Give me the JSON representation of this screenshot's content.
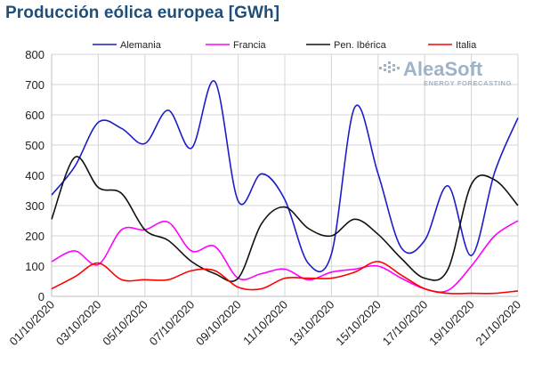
{
  "chart_data": {
    "type": "line",
    "title": "Producción eólica europea [GWh]",
    "ylim": [
      0,
      800
    ],
    "yticks": [
      0,
      100,
      200,
      300,
      400,
      500,
      600,
      700,
      800
    ],
    "grid": true,
    "legend_position": "top",
    "x_tick_labels": [
      "01/10/2020",
      "03/10/2020",
      "05/10/2020",
      "07/10/2020",
      "09/10/2020",
      "11/10/2020",
      "13/10/2020",
      "15/10/2020",
      "17/10/2020",
      "19/10/2020",
      "21/10/2020"
    ],
    "x": [
      "01/10/2020",
      "02/10/2020",
      "03/10/2020",
      "04/10/2020",
      "05/10/2020",
      "06/10/2020",
      "07/10/2020",
      "08/10/2020",
      "09/10/2020",
      "10/10/2020",
      "11/10/2020",
      "12/10/2020",
      "13/10/2020",
      "14/10/2020",
      "15/10/2020",
      "16/10/2020",
      "17/10/2020",
      "18/10/2020",
      "19/10/2020",
      "20/10/2020",
      "21/10/2020"
    ],
    "series": [
      {
        "name": "Alemania",
        "color": "#1c1ccc",
        "values": [
          335,
          430,
          575,
          555,
          505,
          615,
          490,
          710,
          315,
          405,
          320,
          110,
          140,
          625,
          405,
          160,
          185,
          365,
          135,
          410,
          590
        ]
      },
      {
        "name": "Francia",
        "color": "#ff00ff",
        "values": [
          115,
          150,
          105,
          220,
          220,
          245,
          150,
          165,
          60,
          75,
          90,
          55,
          80,
          90,
          100,
          60,
          25,
          20,
          100,
          200,
          250
        ]
      },
      {
        "name": "Pen. Ibérica",
        "color": "#111111",
        "values": [
          255,
          460,
          360,
          340,
          220,
          185,
          115,
          75,
          60,
          240,
          295,
          225,
          200,
          255,
          205,
          125,
          60,
          90,
          370,
          385,
          300
        ]
      },
      {
        "name": "Italia",
        "color": "#ff0000",
        "values": [
          25,
          65,
          110,
          55,
          55,
          55,
          85,
          85,
          30,
          25,
          60,
          60,
          60,
          80,
          115,
          70,
          25,
          10,
          10,
          10,
          18
        ]
      }
    ]
  },
  "logo": {
    "name": "AleaSoft",
    "tagline": "ENERGY FORECASTING"
  }
}
